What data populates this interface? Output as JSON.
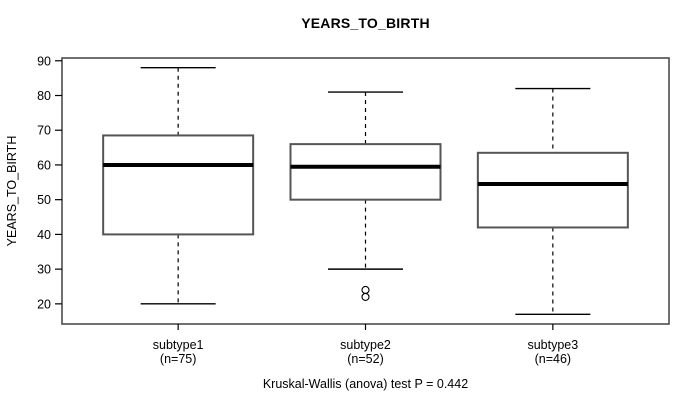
{
  "title": "YEARS_TO_BIRTH",
  "caption": "Kruskal-Wallis (anova) test P = 0.442",
  "chart_data": {
    "type": "boxplot",
    "title": "YEARS_TO_BIRTH",
    "ylabel": "YEARS_TO_BIRTH",
    "xlabel": "",
    "ylim": [
      14.2,
      90.8
    ],
    "yticks": [
      20,
      30,
      40,
      50,
      60,
      70,
      80,
      90
    ],
    "grid": false,
    "groups": [
      {
        "label": "subtype1",
        "sublabel": "(n=75)",
        "n": 75,
        "whisker_low": 20,
        "q1": 40,
        "median": 60,
        "q3": 68.5,
        "whisker_high": 88,
        "outliers": []
      },
      {
        "label": "subtype2",
        "sublabel": "(n=52)",
        "n": 52,
        "whisker_low": 30,
        "q1": 50,
        "median": 59.5,
        "q3": 66,
        "whisker_high": 81,
        "outliers": [
          24,
          22
        ]
      },
      {
        "label": "subtype3",
        "sublabel": "(n=46)",
        "n": 46,
        "whisker_low": 17,
        "q1": 42,
        "median": 54.5,
        "q3": 63.5,
        "whisker_high": 82,
        "outliers": []
      }
    ],
    "footnote": "Kruskal-Wallis (anova) test P = 0.442",
    "colors": {
      "background": "#ffffff",
      "frame": "#4d4d4d",
      "box_border": "#555555",
      "box_fill": "#ffffff",
      "median": "#000000",
      "whisker": "#000000",
      "text": "#000000"
    }
  }
}
